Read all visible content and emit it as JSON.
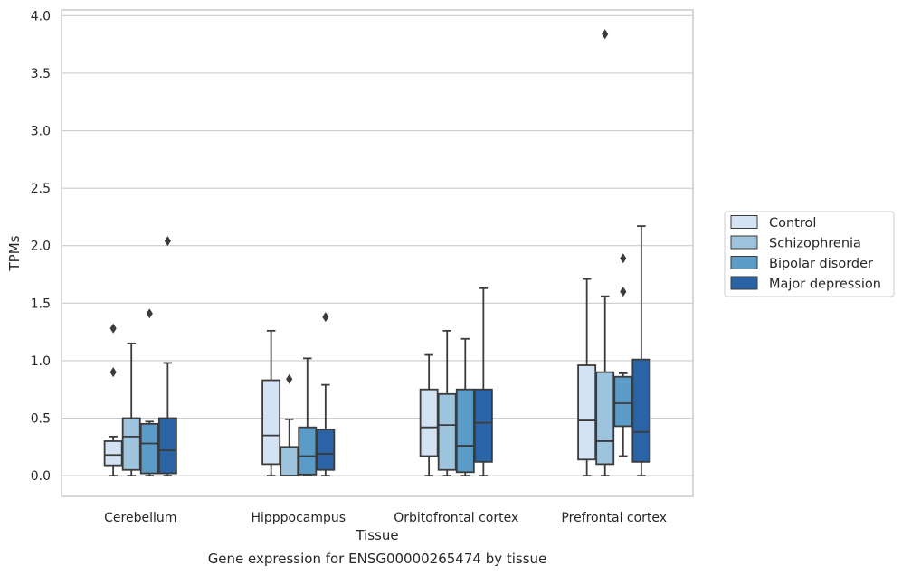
{
  "caption": "Gene expression for ENSG00000265474 by tissue",
  "chart_data": {
    "type": "box",
    "xlabel": "Tissue",
    "ylabel": "TPMs",
    "ylim": [
      -0.18,
      4.05
    ],
    "yticks": [
      "0.0",
      "0.5",
      "1.0",
      "1.5",
      "2.0",
      "2.5",
      "3.0",
      "3.5",
      "4.0"
    ],
    "grid": "horizontal",
    "legend_position": "right",
    "categories": [
      "Cerebellum",
      "Hipppocampus",
      "Orbitofrontal cortex",
      "Prefrontal cortex"
    ],
    "series": [
      {
        "name": "Control",
        "color": "#d4e3f3",
        "boxes": [
          {
            "whislo": 0.0,
            "q1": 0.09,
            "med": 0.18,
            "q3": 0.3,
            "whishi": 0.34,
            "fliers": [
              0.9,
              1.28
            ]
          },
          {
            "whislo": 0.0,
            "q1": 0.1,
            "med": 0.35,
            "q3": 0.83,
            "whishi": 1.26,
            "fliers": []
          },
          {
            "whislo": 0.0,
            "q1": 0.17,
            "med": 0.42,
            "q3": 0.75,
            "whishi": 1.05,
            "fliers": []
          },
          {
            "whislo": 0.0,
            "q1": 0.14,
            "med": 0.48,
            "q3": 0.96,
            "whishi": 1.71,
            "fliers": []
          }
        ]
      },
      {
        "name": "Schizophrenia",
        "color": "#9dc3dd",
        "boxes": [
          {
            "whislo": 0.0,
            "q1": 0.05,
            "med": 0.34,
            "q3": 0.5,
            "whishi": 1.15,
            "fliers": []
          },
          {
            "whislo": 0.0,
            "q1": 0.0,
            "med": 0.0,
            "q3": 0.25,
            "whishi": 0.49,
            "fliers": [
              0.84
            ]
          },
          {
            "whislo": 0.0,
            "q1": 0.05,
            "med": 0.44,
            "q3": 0.71,
            "whishi": 1.26,
            "fliers": []
          },
          {
            "whislo": 0.0,
            "q1": 0.1,
            "med": 0.3,
            "q3": 0.9,
            "whishi": 1.56,
            "fliers": [
              3.84
            ]
          }
        ]
      },
      {
        "name": "Bipolar disorder",
        "color": "#5a9cc7",
        "boxes": [
          {
            "whislo": 0.0,
            "q1": 0.02,
            "med": 0.28,
            "q3": 0.45,
            "whishi": 0.47,
            "fliers": [
              1.41
            ]
          },
          {
            "whislo": 0.0,
            "q1": 0.01,
            "med": 0.17,
            "q3": 0.42,
            "whishi": 1.02,
            "fliers": []
          },
          {
            "whislo": 0.0,
            "q1": 0.03,
            "med": 0.26,
            "q3": 0.75,
            "whishi": 1.19,
            "fliers": []
          },
          {
            "whislo": 0.17,
            "q1": 0.43,
            "med": 0.63,
            "q3": 0.86,
            "whishi": 0.89,
            "fliers": [
              1.6,
              1.89
            ]
          }
        ]
      },
      {
        "name": "Major depression",
        "color": "#2a64a7",
        "boxes": [
          {
            "whislo": 0.0,
            "q1": 0.02,
            "med": 0.22,
            "q3": 0.5,
            "whishi": 0.98,
            "fliers": [
              2.04
            ]
          },
          {
            "whislo": 0.0,
            "q1": 0.05,
            "med": 0.19,
            "q3": 0.4,
            "whishi": 0.79,
            "fliers": [
              1.38
            ]
          },
          {
            "whislo": 0.0,
            "q1": 0.12,
            "med": 0.46,
            "q3": 0.75,
            "whishi": 1.63,
            "fliers": []
          },
          {
            "whislo": 0.0,
            "q1": 0.12,
            "med": 0.38,
            "q3": 1.01,
            "whishi": 2.17,
            "fliers": []
          }
        ]
      }
    ]
  }
}
